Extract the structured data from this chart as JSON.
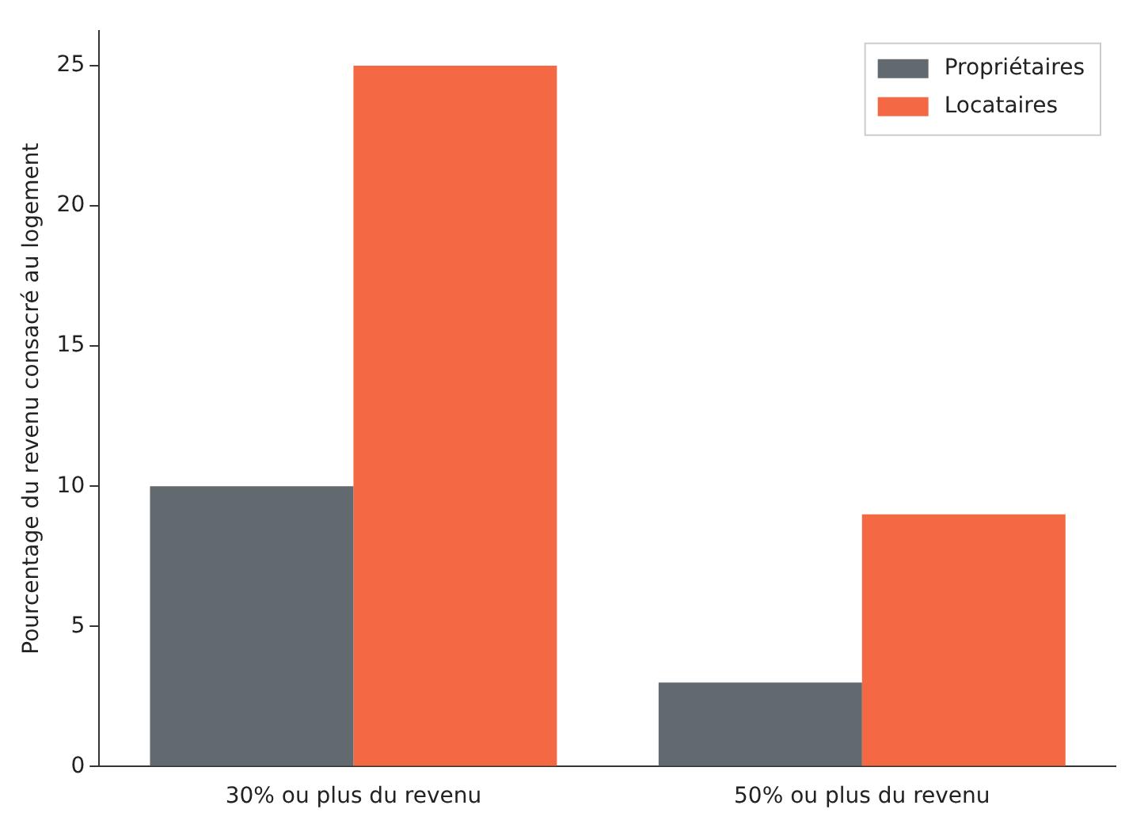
{
  "chart_data": {
    "type": "bar",
    "ylabel": "Pourcentage du revenu consacré au logement",
    "categories": [
      "30% ou plus du revenu",
      "50% ou plus du revenu"
    ],
    "series": [
      {
        "name": "Propriétaires",
        "color": "#626a70",
        "values": [
          10,
          3
        ]
      },
      {
        "name": "Locataires",
        "color": "#f46944",
        "values": [
          25,
          9
        ]
      }
    ],
    "ylim": [
      0,
      26.25
    ],
    "yticks": [
      0,
      5,
      10,
      15,
      20,
      25
    ],
    "grid": false,
    "legend": "top right"
  }
}
